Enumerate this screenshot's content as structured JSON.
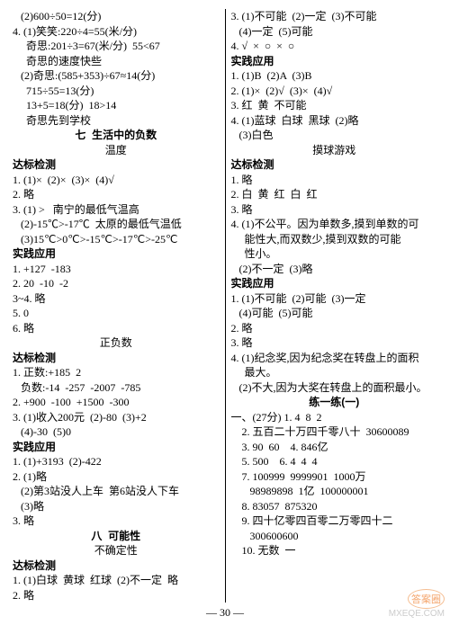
{
  "pageNumber": "— 30 —",
  "watermark": "MXEQE.COM",
  "stamp": "答案圈",
  "leftColumn": [
    {
      "cls": "line",
      "txt": "   (2)600÷50=12(分)"
    },
    {
      "cls": "line",
      "txt": "4. (1)笑笑:220÷4=55(米/分)"
    },
    {
      "cls": "line",
      "txt": "     奇思:201÷3=67(米/分)  55<67"
    },
    {
      "cls": "line",
      "txt": "     奇思的速度快些"
    },
    {
      "cls": "line",
      "txt": "   (2)奇思:(585+353)÷67≈14(分)"
    },
    {
      "cls": "line",
      "txt": "     715÷55=13(分)"
    },
    {
      "cls": "line",
      "txt": "     13+5=18(分)  18>14"
    },
    {
      "cls": "line",
      "txt": "     奇思先到学校"
    },
    {
      "cls": "line bold center",
      "txt": "七  生活中的负数"
    },
    {
      "cls": "line center",
      "txt": "温度"
    },
    {
      "cls": "line bold",
      "txt": "达标检测"
    },
    {
      "cls": "line",
      "txt": "1. (1)×  (2)×  (3)×  (4)√"
    },
    {
      "cls": "line",
      "txt": "2. 略"
    },
    {
      "cls": "line",
      "txt": "3. (1) >   南宁的最低气温高"
    },
    {
      "cls": "line",
      "txt": "   (2)-15℃>-17℃  太原的最低气温低"
    },
    {
      "cls": "line",
      "txt": "   (3)15℃>0℃>-15℃>-17℃>-25℃"
    },
    {
      "cls": "line bold",
      "txt": "实践应用"
    },
    {
      "cls": "line",
      "txt": "1. +127  -183"
    },
    {
      "cls": "line",
      "txt": "2. 20  -10  -2"
    },
    {
      "cls": "line",
      "txt": "3~4. 略"
    },
    {
      "cls": "line",
      "txt": "5. 0"
    },
    {
      "cls": "line",
      "txt": "6. 略"
    },
    {
      "cls": "line center",
      "txt": "正负数"
    },
    {
      "cls": "line bold",
      "txt": "达标检测"
    },
    {
      "cls": "line",
      "txt": "1. 正数:+185  2"
    },
    {
      "cls": "line",
      "txt": "   负数:-14  -257  -2007  -785"
    },
    {
      "cls": "line",
      "txt": "2. +900  -100  +1500  -300"
    },
    {
      "cls": "line",
      "txt": "3. (1)收入200元  (2)-80  (3)+2"
    },
    {
      "cls": "line",
      "txt": "   (4)-30  (5)0"
    },
    {
      "cls": "line bold",
      "txt": "实践应用"
    },
    {
      "cls": "line",
      "txt": "1. (1)+3193  (2)-422"
    },
    {
      "cls": "line",
      "txt": "2. (1)略"
    },
    {
      "cls": "line",
      "txt": "   (2)第3站没人上车  第6站没人下车"
    },
    {
      "cls": "line",
      "txt": "   (3)略"
    },
    {
      "cls": "line",
      "txt": "3. 略"
    },
    {
      "cls": "line bold center",
      "txt": "八  可能性"
    },
    {
      "cls": "line center",
      "txt": "不确定性"
    },
    {
      "cls": "line bold",
      "txt": "达标检测"
    },
    {
      "cls": "line",
      "txt": "1. (1)白球  黄球  红球  (2)不一定  略"
    },
    {
      "cls": "line",
      "txt": "2. 略"
    }
  ],
  "rightColumn": [
    {
      "cls": "line",
      "txt": "3. (1)不可能  (2)一定  (3)不可能"
    },
    {
      "cls": "line",
      "txt": "   (4)一定  (5)可能"
    },
    {
      "cls": "line",
      "txt": "4. √  ×  ○  ×  ○"
    },
    {
      "cls": "line bold",
      "txt": "实践应用"
    },
    {
      "cls": "line",
      "txt": "1. (1)B  (2)A  (3)B"
    },
    {
      "cls": "line",
      "txt": "2. (1)×  (2)√  (3)×  (4)√"
    },
    {
      "cls": "line",
      "txt": "3. 红  黄  不可能"
    },
    {
      "cls": "line",
      "txt": "4. (1)蓝球  白球  黑球  (2)略"
    },
    {
      "cls": "line",
      "txt": "   (3)白色"
    },
    {
      "cls": "line center",
      "txt": "摸球游戏"
    },
    {
      "cls": "line bold",
      "txt": "达标检测"
    },
    {
      "cls": "line",
      "txt": "1. 略"
    },
    {
      "cls": "line",
      "txt": "2. 白  黄  红  白  红"
    },
    {
      "cls": "line",
      "txt": "3. 略"
    },
    {
      "cls": "line",
      "txt": "4. (1)不公平。因为单数多,摸到单数的可"
    },
    {
      "cls": "line",
      "txt": "     能性大,而双数少,摸到双数的可能"
    },
    {
      "cls": "line",
      "txt": "     性小。"
    },
    {
      "cls": "line",
      "txt": "   (2)不一定  (3)略"
    },
    {
      "cls": "line bold",
      "txt": "实践应用"
    },
    {
      "cls": "line",
      "txt": "1. (1)不可能  (2)可能  (3)一定"
    },
    {
      "cls": "line",
      "txt": "   (4)可能  (5)可能"
    },
    {
      "cls": "line",
      "txt": "2. 略"
    },
    {
      "cls": "line",
      "txt": "3. 略"
    },
    {
      "cls": "line",
      "txt": "4. (1)纪念奖,因为纪念奖在转盘上的面积"
    },
    {
      "cls": "line",
      "txt": "     最大。"
    },
    {
      "cls": "line",
      "txt": "   (2)不大,因为大奖在转盘上的面积最小。"
    },
    {
      "cls": "line bold center",
      "txt": "练一练(一)"
    },
    {
      "cls": "line",
      "txt": "一、(27分) 1. 4  8  2"
    },
    {
      "cls": "line",
      "txt": "    2. 五百二十万四千零八十  30600089"
    },
    {
      "cls": "line",
      "txt": "    3. 90  60    4. 846亿"
    },
    {
      "cls": "line",
      "txt": "    5. 500    6. 4  4  4"
    },
    {
      "cls": "line",
      "txt": "    7. 100999  9999901  1000万"
    },
    {
      "cls": "line",
      "txt": "       98989898  1亿  100000001"
    },
    {
      "cls": "line",
      "txt": "    8. 83057  875320"
    },
    {
      "cls": "line",
      "txt": "    9. 四十亿零四百零二万零四十二"
    },
    {
      "cls": "line",
      "txt": "       300600600"
    },
    {
      "cls": "line",
      "txt": "    10. 无数  一"
    }
  ]
}
